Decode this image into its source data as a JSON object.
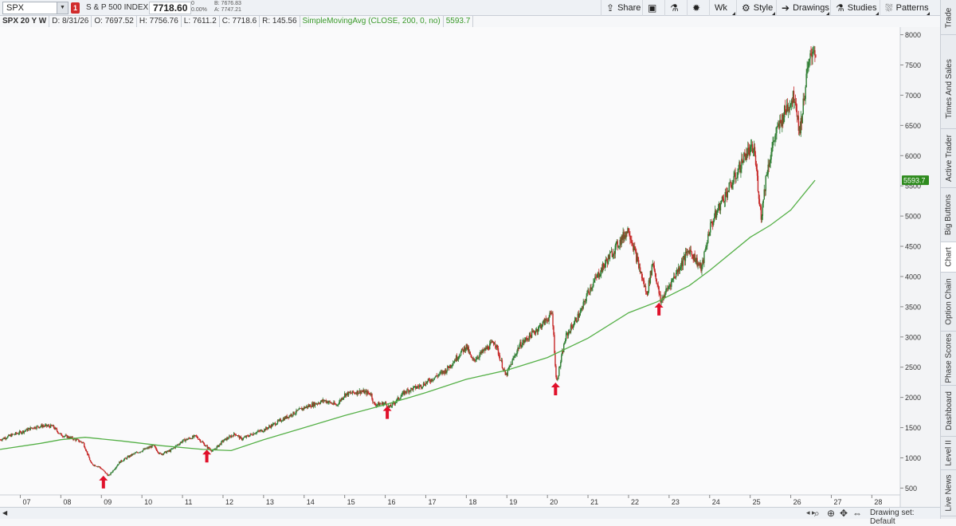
{
  "toolbar": {
    "symbol_value": "SPX",
    "link_label": "1",
    "description": "S & P 500 INDEX",
    "last_price": "7718.60",
    "net_change": "0",
    "net_change_pct": "0.00%",
    "bid": "B: 7676.83",
    "ask": "A: 7747.21",
    "share_label": "Share",
    "timeframe_label": "Wk",
    "style_label": "Style",
    "drawings_label": "Drawings",
    "studies_label": "Studies",
    "patterns_label": "Patterns",
    "icons": [
      "share-icon",
      "screenshot-icon",
      "flask-icon",
      "gear-icon",
      "style-icon",
      "drawings-icon",
      "studies-icon",
      "patterns-icon"
    ]
  },
  "header": {
    "chart_label": "SPX 20 Y W",
    "date": "D: 8/31/26",
    "open": "O: 7697.52",
    "high": "H: 7756.76",
    "low": "L: 7611.2",
    "close": "C: 7718.6",
    "range": "R: 145.56",
    "study": "SimpleMovingAvg (CLOSE, 200, 0, no)",
    "study_value": "5593.7"
  },
  "sidebar": {
    "tabs": [
      {
        "label": "Trade",
        "active": false
      },
      {
        "label": "Times And Sales",
        "active": false
      },
      {
        "label": "Active Trader",
        "active": false
      },
      {
        "label": "Big Buttons",
        "active": false
      },
      {
        "label": "Chart",
        "active": true
      },
      {
        "label": "Option Chain",
        "active": false
      },
      {
        "label": "Phase Scores",
        "active": false
      },
      {
        "label": "Dashboard",
        "active": false
      },
      {
        "label": "Level II",
        "active": false
      },
      {
        "label": "Live News",
        "active": false
      }
    ]
  },
  "bottom": {
    "drawing_set": "Drawing set: Default"
  },
  "colors": {
    "up_bar": "#2e7d32",
    "down_bar": "#c62828",
    "sma": "#55b047",
    "arrow": "#e0102a",
    "sma_badge": "#2e8b1e",
    "background": "#fafafb"
  },
  "chart_data": {
    "type": "candlestick",
    "symbol": "SPX",
    "aggregation": "Wk",
    "ylim": [
      400,
      8100
    ],
    "yticks": [
      500,
      1000,
      1500,
      2000,
      2500,
      3000,
      3500,
      4000,
      4500,
      5000,
      5500,
      6000,
      6500,
      7000,
      7500,
      8000
    ],
    "xlim": [
      2006.5,
      2028.7
    ],
    "xticks": [
      {
        "label": "07",
        "year": 2007
      },
      {
        "label": "08",
        "year": 2008
      },
      {
        "label": "09",
        "year": 2009
      },
      {
        "label": "10",
        "year": 2010
      },
      {
        "label": "11",
        "year": 2011
      },
      {
        "label": "12",
        "year": 2012
      },
      {
        "label": "13",
        "year": 2013
      },
      {
        "label": "14",
        "year": 2014
      },
      {
        "label": "15",
        "year": 2015
      },
      {
        "label": "16",
        "year": 2016
      },
      {
        "label": "17",
        "year": 2017
      },
      {
        "label": "18",
        "year": 2018
      },
      {
        "label": "19",
        "year": 2019
      },
      {
        "label": "20",
        "year": 2020
      },
      {
        "label": "21",
        "year": 2021
      },
      {
        "label": "22",
        "year": 2022
      },
      {
        "label": "23",
        "year": 2023
      },
      {
        "label": "24",
        "year": 2024
      },
      {
        "label": "25",
        "year": 2025
      },
      {
        "label": "26",
        "year": 2026
      },
      {
        "label": "27",
        "year": 2027
      },
      {
        "label": "28",
        "year": 2028
      }
    ],
    "price_path": [
      [
        2006.5,
        1300
      ],
      [
        2006.8,
        1380
      ],
      [
        2007.0,
        1420
      ],
      [
        2007.3,
        1500
      ],
      [
        2007.55,
        1530
      ],
      [
        2007.8,
        1520
      ],
      [
        2008.0,
        1380
      ],
      [
        2008.3,
        1320
      ],
      [
        2008.55,
        1250
      ],
      [
        2008.75,
        900
      ],
      [
        2008.95,
        850
      ],
      [
        2009.18,
        700
      ],
      [
        2009.45,
        930
      ],
      [
        2009.75,
        1050
      ],
      [
        2010.0,
        1120
      ],
      [
        2010.28,
        1200
      ],
      [
        2010.45,
        1060
      ],
      [
        2010.7,
        1120
      ],
      [
        2011.0,
        1280
      ],
      [
        2011.33,
        1360
      ],
      [
        2011.6,
        1180
      ],
      [
        2011.75,
        1110
      ],
      [
        2012.0,
        1280
      ],
      [
        2012.3,
        1400
      ],
      [
        2012.45,
        1310
      ],
      [
        2012.8,
        1420
      ],
      [
        2013.0,
        1460
      ],
      [
        2013.5,
        1650
      ],
      [
        2014.0,
        1830
      ],
      [
        2014.5,
        1950
      ],
      [
        2014.8,
        1870
      ],
      [
        2015.0,
        2050
      ],
      [
        2015.4,
        2100
      ],
      [
        2015.65,
        2060
      ],
      [
        2015.72,
        1880
      ],
      [
        2016.0,
        1900
      ],
      [
        2016.1,
        1830
      ],
      [
        2016.5,
        2100
      ],
      [
        2016.9,
        2200
      ],
      [
        2017.5,
        2450
      ],
      [
        2018.0,
        2850
      ],
      [
        2018.15,
        2600
      ],
      [
        2018.7,
        2930
      ],
      [
        2018.97,
        2350
      ],
      [
        2019.3,
        2850
      ],
      [
        2019.9,
        3230
      ],
      [
        2020.12,
        3390
      ],
      [
        2020.22,
        2237
      ],
      [
        2020.45,
        3000
      ],
      [
        2020.85,
        3450
      ],
      [
        2021.0,
        3750
      ],
      [
        2021.5,
        4300
      ],
      [
        2022.0,
        4790
      ],
      [
        2022.2,
        4300
      ],
      [
        2022.45,
        3700
      ],
      [
        2022.6,
        4250
      ],
      [
        2022.79,
        3580
      ],
      [
        2023.0,
        3850
      ],
      [
        2023.5,
        4450
      ],
      [
        2023.8,
        4120
      ],
      [
        2024.0,
        4800
      ],
      [
        2024.3,
        5250
      ],
      [
        2024.6,
        5600
      ],
      [
        2024.9,
        6050
      ],
      [
        2025.1,
        6100
      ],
      [
        2025.27,
        4980
      ],
      [
        2025.4,
        5700
      ],
      [
        2025.6,
        6300
      ],
      [
        2025.9,
        6800
      ],
      [
        2026.1,
        7000
      ],
      [
        2026.22,
        6380
      ],
      [
        2026.4,
        7350
      ],
      [
        2026.55,
        7800
      ],
      [
        2026.63,
        7700
      ]
    ],
    "sma": {
      "name": "SimpleMovingAvg (CLOSE, 200, 0, no)",
      "last_value": 5593.7,
      "points": [
        [
          2006.5,
          1140
        ],
        [
          2007.5,
          1240
        ],
        [
          2008.0,
          1300
        ],
        [
          2008.6,
          1340
        ],
        [
          2009.5,
          1280
        ],
        [
          2010.5,
          1200
        ],
        [
          2011.5,
          1140
        ],
        [
          2012.2,
          1120
        ],
        [
          2013.0,
          1300
        ],
        [
          2014.0,
          1500
        ],
        [
          2015.0,
          1700
        ],
        [
          2016.0,
          1880
        ],
        [
          2017.0,
          2080
        ],
        [
          2018.0,
          2300
        ],
        [
          2019.0,
          2450
        ],
        [
          2020.0,
          2660
        ],
        [
          2021.0,
          2980
        ],
        [
          2022.0,
          3400
        ],
        [
          2022.7,
          3580
        ],
        [
          2023.5,
          3850
        ],
        [
          2024.0,
          4100
        ],
        [
          2025.0,
          4650
        ],
        [
          2025.5,
          4850
        ],
        [
          2026.0,
          5100
        ],
        [
          2026.6,
          5593.7
        ]
      ]
    },
    "annotations": [
      {
        "type": "arrow-up",
        "x": 2009.05,
        "y": 600
      },
      {
        "type": "arrow-up",
        "x": 2011.6,
        "y": 1030
      },
      {
        "type": "arrow-up",
        "x": 2016.05,
        "y": 1750
      },
      {
        "type": "arrow-up",
        "x": 2020.2,
        "y": 2140
      },
      {
        "type": "arrow-up",
        "x": 2022.75,
        "y": 3460
      }
    ]
  }
}
